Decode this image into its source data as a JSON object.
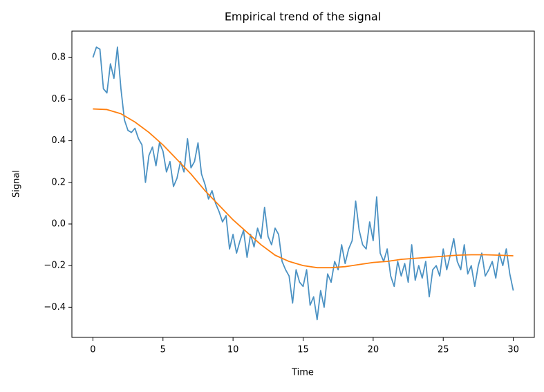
{
  "chart_data": {
    "type": "line",
    "title": "Empirical trend of the signal",
    "x_label": "Time",
    "y_label": "Signal",
    "xlim": [
      -1.5,
      31.5
    ],
    "ylim": [
      -0.545,
      0.927
    ],
    "xticks": [
      0,
      5,
      10,
      15,
      20,
      25,
      30
    ],
    "yticks": [
      {
        "value": -0.4,
        "label": "−0.4"
      },
      {
        "value": -0.2,
        "label": "−0.2"
      },
      {
        "value": 0,
        "label": "0.0"
      },
      0.2,
      0.4,
      0.6,
      0.8
    ],
    "series": [
      {
        "color": "#1f77b4",
        "alpha": 0.8,
        "x": [
          0,
          0.25,
          0.5,
          0.75,
          1,
          1.25,
          1.5,
          1.75,
          2,
          2.25,
          2.5,
          2.75,
          3,
          3.25,
          3.5,
          3.75,
          4,
          4.25,
          4.5,
          4.75,
          5,
          5.25,
          5.5,
          5.75,
          6,
          6.25,
          6.5,
          6.75,
          7,
          7.25,
          7.5,
          7.75,
          8,
          8.25,
          8.5,
          8.75,
          9,
          9.25,
          9.5,
          9.75,
          10,
          10.25,
          10.5,
          10.75,
          11,
          11.25,
          11.5,
          11.75,
          12,
          12.25,
          12.5,
          12.75,
          13,
          13.25,
          13.5,
          13.75,
          14,
          14.25,
          14.5,
          14.75,
          15,
          15.25,
          15.5,
          15.75,
          16,
          16.25,
          16.5,
          16.75,
          17,
          17.25,
          17.5,
          17.75,
          18,
          18.25,
          18.5,
          18.75,
          19,
          19.25,
          19.5,
          19.75,
          20,
          20.25,
          20.5,
          20.75,
          21,
          21.25,
          21.5,
          21.75,
          22,
          22.25,
          22.5,
          22.75,
          23,
          23.25,
          23.5,
          23.75,
          24,
          24.25,
          24.5,
          24.75,
          25,
          25.25,
          25.5,
          25.75,
          26,
          26.25,
          26.5,
          26.75,
          27,
          27.25,
          27.5,
          27.75,
          28,
          28.25,
          28.5,
          28.75,
          29,
          29.25,
          29.5,
          29.75,
          30
        ],
        "values": [
          0.8,
          0.85,
          0.84,
          0.65,
          0.63,
          0.77,
          0.7,
          0.85,
          0.65,
          0.5,
          0.45,
          0.44,
          0.46,
          0.41,
          0.38,
          0.2,
          0.33,
          0.37,
          0.28,
          0.39,
          0.35,
          0.25,
          0.3,
          0.18,
          0.22,
          0.3,
          0.25,
          0.41,
          0.27,
          0.3,
          0.39,
          0.24,
          0.19,
          0.12,
          0.16,
          0.1,
          0.06,
          0.01,
          0.04,
          -0.12,
          -0.05,
          -0.14,
          -0.08,
          -0.03,
          -0.16,
          -0.05,
          -0.11,
          -0.02,
          -0.07,
          0.08,
          -0.06,
          -0.1,
          -0.02,
          -0.05,
          -0.18,
          -0.22,
          -0.25,
          -0.38,
          -0.22,
          -0.28,
          -0.3,
          -0.22,
          -0.39,
          -0.35,
          -0.46,
          -0.32,
          -0.4,
          -0.24,
          -0.28,
          -0.18,
          -0.22,
          -0.1,
          -0.19,
          -0.12,
          -0.08,
          0.11,
          -0.03,
          -0.1,
          -0.12,
          0.01,
          -0.08,
          0.13,
          -0.14,
          -0.18,
          -0.12,
          -0.25,
          -0.3,
          -0.18,
          -0.25,
          -0.19,
          -0.28,
          -0.1,
          -0.27,
          -0.2,
          -0.26,
          -0.18,
          -0.35,
          -0.22,
          -0.2,
          -0.25,
          -0.12,
          -0.22,
          -0.15,
          -0.07,
          -0.18,
          -0.22,
          -0.1,
          -0.24,
          -0.2,
          -0.3,
          -0.2,
          -0.14,
          -0.25,
          -0.22,
          -0.18,
          -0.26,
          -0.14,
          -0.2,
          -0.12,
          -0.24,
          -0.32
        ]
      },
      {
        "color": "#ff7f0e",
        "x": [
          0,
          1,
          2,
          3,
          4,
          5,
          6,
          7,
          8,
          9,
          10,
          11,
          12,
          13,
          14,
          15,
          16,
          17,
          18,
          19,
          20,
          21,
          22,
          23,
          24,
          25,
          26,
          27,
          28,
          29,
          30
        ],
        "values": [
          0.553,
          0.55,
          0.53,
          0.49,
          0.44,
          0.38,
          0.31,
          0.24,
          0.16,
          0.09,
          0.02,
          -0.04,
          -0.1,
          -0.15,
          -0.18,
          -0.2,
          -0.21,
          -0.21,
          -0.205,
          -0.195,
          -0.185,
          -0.18,
          -0.17,
          -0.165,
          -0.16,
          -0.155,
          -0.15,
          -0.148,
          -0.148,
          -0.15,
          -0.153
        ]
      }
    ]
  }
}
